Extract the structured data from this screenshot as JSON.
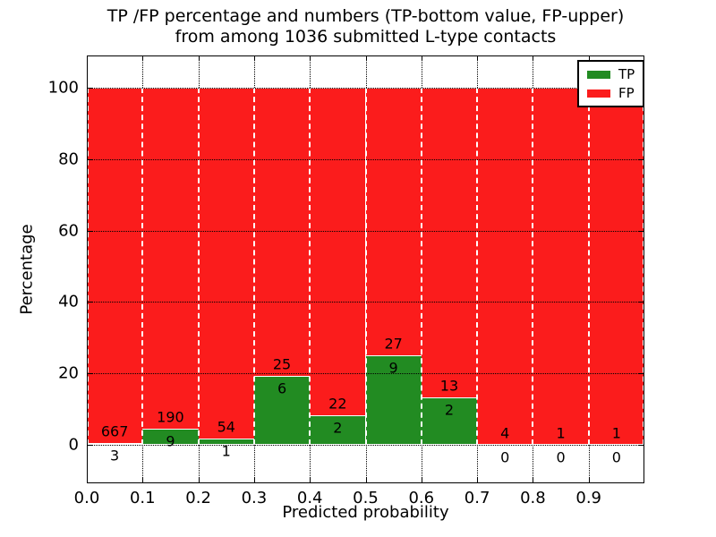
{
  "title": {
    "line1": "TP /FP percentage and numbers (TP-bottom value, FP-upper)",
    "line2": "from among 1036 submitted L-type contacts"
  },
  "axes": {
    "xlabel": "Predicted probability",
    "ylabel": "Percentage",
    "xtick_labels": [
      "0.0",
      "0.1",
      "0.2",
      "0.3",
      "0.4",
      "0.5",
      "0.6",
      "0.7",
      "0.8",
      "0.9"
    ],
    "ytick_labels": [
      "0",
      "20",
      "40",
      "60",
      "80",
      "100"
    ],
    "ytick_values": [
      0,
      20,
      40,
      60,
      80,
      100
    ]
  },
  "legend": {
    "items": [
      {
        "label": "TP",
        "color": "#228b22"
      },
      {
        "label": "FP",
        "color": "#fb1c1c"
      }
    ]
  },
  "colors": {
    "tp": "#228b22",
    "fp": "#fb1c1c",
    "frame": "#000000",
    "background": "#ffffff",
    "grid": "#000000",
    "bar_edge": "#ffffff"
  },
  "chart_data": {
    "type": "bar",
    "subtype": "stacked-percentage-histogram",
    "title": "TP /FP percentage and numbers (TP-bottom value, FP-upper) from among 1036 submitted L-type contacts",
    "xlabel": "Predicted probability",
    "ylabel": "Percentage",
    "xlim": [
      0,
      1
    ],
    "ylim": [
      -10.8,
      109
    ],
    "grid": true,
    "legend_position": "upper right",
    "bin_width": 0.1,
    "bin_starts": [
      0.0,
      0.1,
      0.2,
      0.3,
      0.4,
      0.5,
      0.6,
      0.7,
      0.8,
      0.9
    ],
    "total_contacts": 1036,
    "series": [
      {
        "name": "TP",
        "color": "#228b22",
        "counts": [
          3,
          9,
          1,
          6,
          2,
          9,
          2,
          0,
          0,
          0
        ]
      },
      {
        "name": "FP",
        "color": "#fb1c1c",
        "counts": [
          667,
          190,
          54,
          25,
          22,
          27,
          13,
          4,
          1,
          1
        ]
      }
    ],
    "tp_percent_of_bin": [
      0.45,
      4.52,
      1.82,
      19.35,
      8.33,
      25.0,
      13.33,
      0.0,
      0.0,
      0.0
    ]
  }
}
